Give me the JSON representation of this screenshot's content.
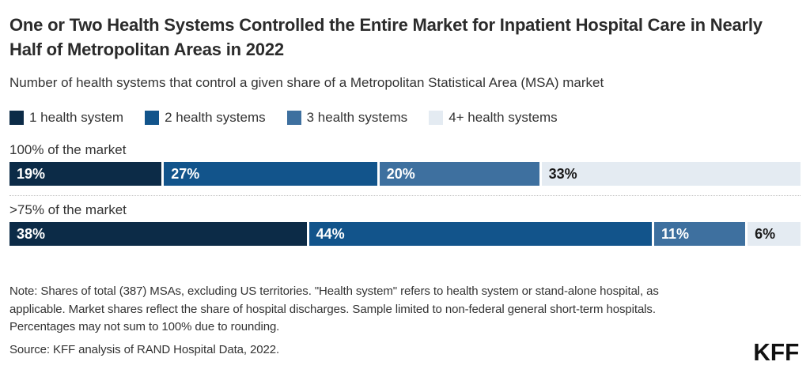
{
  "header": {
    "title": "One or Two Health Systems Controlled the Entire Market for Inpatient Hospital Care in Nearly Half of Metropolitan Areas in 2022",
    "subtitle": "Number of health systems that control a given share of a Metropolitan Statistical Area (MSA) market"
  },
  "chart_data": {
    "type": "bar",
    "subtype": "horizontal-stacked",
    "categories": [
      "100% of the market",
      ">75% of the market"
    ],
    "series": [
      {
        "name": "1 health system",
        "color": "#0c2b47",
        "label_color": "#ffffff",
        "values": [
          19,
          38
        ]
      },
      {
        "name": "2 health systems",
        "color": "#12548b",
        "label_color": "#ffffff",
        "values": [
          27,
          44
        ]
      },
      {
        "name": "3 health systems",
        "color": "#3e709f",
        "label_color": "#ffffff",
        "values": [
          20,
          11
        ]
      },
      {
        "name": "4+ health systems",
        "color": "#e4ebf2",
        "label_color": "#1a1a1a",
        "values": [
          33,
          6
        ]
      }
    ],
    "value_suffix": "%",
    "data_labels": true,
    "legend_position": "top",
    "axes_shown": false
  },
  "footer": {
    "note_lines": [
      "Note: Shares of total (387) MSAs, excluding US territories. \"Health system\" refers to health system or stand-alone hospital, as",
      "applicable. Market shares reflect the share of hospital discharges. Sample limited to non-federal general short-term hospitals.",
      "Percentages may not sum to 100% due to rounding."
    ],
    "source": "Source: KFF analysis of RAND Hospital Data, 2022.",
    "logo": "KFF"
  }
}
